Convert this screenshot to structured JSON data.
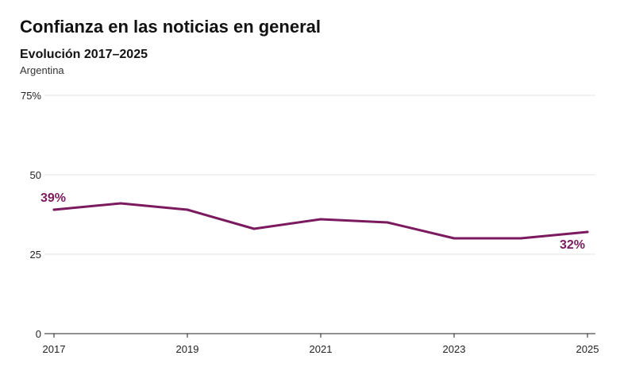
{
  "chart_data": {
    "type": "line",
    "title": "Confianza en las noticias en general",
    "subtitle": "Evolución 2017–2025",
    "region": "Argentina",
    "x": [
      2017,
      2018,
      2019,
      2020,
      2021,
      2022,
      2023,
      2024,
      2025
    ],
    "series": [
      {
        "values": [
          39,
          41,
          39,
          33,
          36,
          35,
          30,
          30,
          32
        ],
        "color": "#7b1a5e"
      }
    ],
    "x_ticks": [
      "2017",
      "2019",
      "2021",
      "2023",
      "2025"
    ],
    "x_tick_values": [
      2017,
      2019,
      2021,
      2023,
      2025
    ],
    "y_ticks": [
      "0",
      "25",
      "50",
      "75%"
    ],
    "y_tick_values": [
      0,
      25,
      50,
      75
    ],
    "ylim": [
      0,
      75
    ],
    "xlim": [
      2017,
      2025
    ],
    "grid": true,
    "annotations": [
      {
        "text": "39%",
        "x": 2017,
        "y": 39
      },
      {
        "text": "32%",
        "x": 2025,
        "y": 32
      }
    ]
  }
}
